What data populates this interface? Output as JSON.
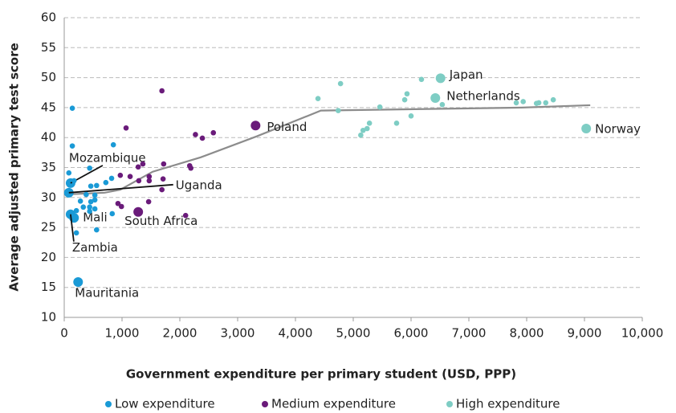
{
  "chart_data": {
    "type": "scatter",
    "xlabel": "Government expenditure per primary student (USD, PPP)",
    "ylabel": "Average adjusted primary test score",
    "xlim": [
      0,
      10000
    ],
    "ylim": [
      10,
      60
    ],
    "xticks": [
      0,
      {
        "value": 1000,
        "label": "1,000"
      },
      {
        "value": 2000,
        "label": "2,000"
      },
      {
        "value": 3000,
        "label": "3,000"
      },
      {
        "value": 4000,
        "label": "4,000"
      },
      {
        "value": 5000,
        "label": "5,000"
      },
      {
        "value": 6000,
        "label": "6,000"
      },
      {
        "value": 7000,
        "label": "7,000"
      },
      {
        "value": 8000,
        "label": "8,000"
      },
      {
        "value": 9000,
        "label": "9,000"
      },
      {
        "value": 10000,
        "label": "10,000"
      }
    ],
    "yticks": [
      10,
      15,
      20,
      25,
      30,
      35,
      40,
      45,
      50,
      55,
      60
    ],
    "grid": true,
    "legend": "bottom",
    "series": [
      {
        "name": "Low expenditure",
        "color": "#1a9ad6",
        "x": [
          110,
          80,
          170,
          110,
          240,
          140,
          140,
          80,
          170,
          440,
          460,
          560,
          530,
          380,
          440,
          280,
          330,
          440,
          210,
          210,
          560,
          460,
          530,
          720,
          820,
          850,
          830,
          530
        ],
        "values": [
          32.4,
          30.8,
          26.6,
          27.2,
          15.9,
          44.9,
          38.6,
          34.1,
          32.8,
          34.9,
          31.9,
          32.0,
          30.4,
          30.5,
          28.4,
          29.4,
          28.4,
          27.7,
          27.8,
          24.1,
          24.6,
          29.3,
          29.6,
          32.5,
          33.2,
          38.8,
          27.3,
          28.1
        ],
        "labels": [
          "Mozambique",
          "Uganda",
          "Mali",
          "Zambia",
          "Mauritania",
          null,
          null,
          null,
          null,
          null,
          null,
          null,
          null,
          null,
          null,
          null,
          null,
          null,
          null,
          null,
          null,
          null,
          null,
          null,
          null,
          null,
          null,
          null
        ]
      },
      {
        "name": "Medium expenditure",
        "color": "#6a1b7a",
        "x": [
          3310,
          1280,
          1690,
          1070,
          2270,
          2390,
          2580,
          1360,
          1280,
          2170,
          2190,
          1720,
          970,
          1140,
          1470,
          1470,
          1290,
          1710,
          1690,
          930,
          990,
          1460,
          2100
        ],
        "values": [
          42.0,
          27.6,
          47.8,
          41.6,
          40.5,
          39.9,
          40.8,
          35.6,
          35.1,
          35.3,
          34.9,
          35.6,
          33.7,
          33.5,
          33.5,
          32.8,
          32.8,
          33.1,
          31.3,
          29.0,
          28.5,
          29.3,
          27.0
        ],
        "labels": [
          "Poland",
          "South Africa",
          null,
          null,
          null,
          null,
          null,
          null,
          null,
          null,
          null,
          null,
          null,
          null,
          null,
          null,
          null,
          null,
          null,
          null,
          null,
          null,
          null
        ]
      },
      {
        "name": "High expenditure",
        "color": "#7ecdc4",
        "x": [
          6510,
          6420,
          9030,
          4780,
          4390,
          4740,
          5460,
          5280,
          5170,
          5240,
          5130,
          5750,
          5890,
          5930,
          6000,
          6180,
          6540,
          8210,
          8330,
          8460,
          7820,
          7940,
          8170
        ],
        "values": [
          49.9,
          46.6,
          41.5,
          49.0,
          46.5,
          44.5,
          45.1,
          42.4,
          41.2,
          41.5,
          40.4,
          42.4,
          46.3,
          47.3,
          43.6,
          49.7,
          45.5,
          45.8,
          45.8,
          46.3,
          45.8,
          46.0,
          45.7
        ],
        "labels": [
          "Japan",
          "Netherlands",
          "Norway",
          null,
          null,
          null,
          null,
          null,
          null,
          null,
          null,
          null,
          null,
          null,
          null,
          null,
          null,
          null,
          null,
          null,
          null,
          null,
          null
        ]
      }
    ],
    "trend": {
      "color": "#8c8c8c",
      "x": [
        0,
        700,
        970,
        1530,
        2360,
        3330,
        4440,
        5830,
        7920,
        9100
      ],
      "values": [
        30.5,
        30.8,
        31.3,
        34.3,
        36.7,
        40.2,
        44.5,
        44.7,
        45.0,
        45.4
      ]
    }
  }
}
